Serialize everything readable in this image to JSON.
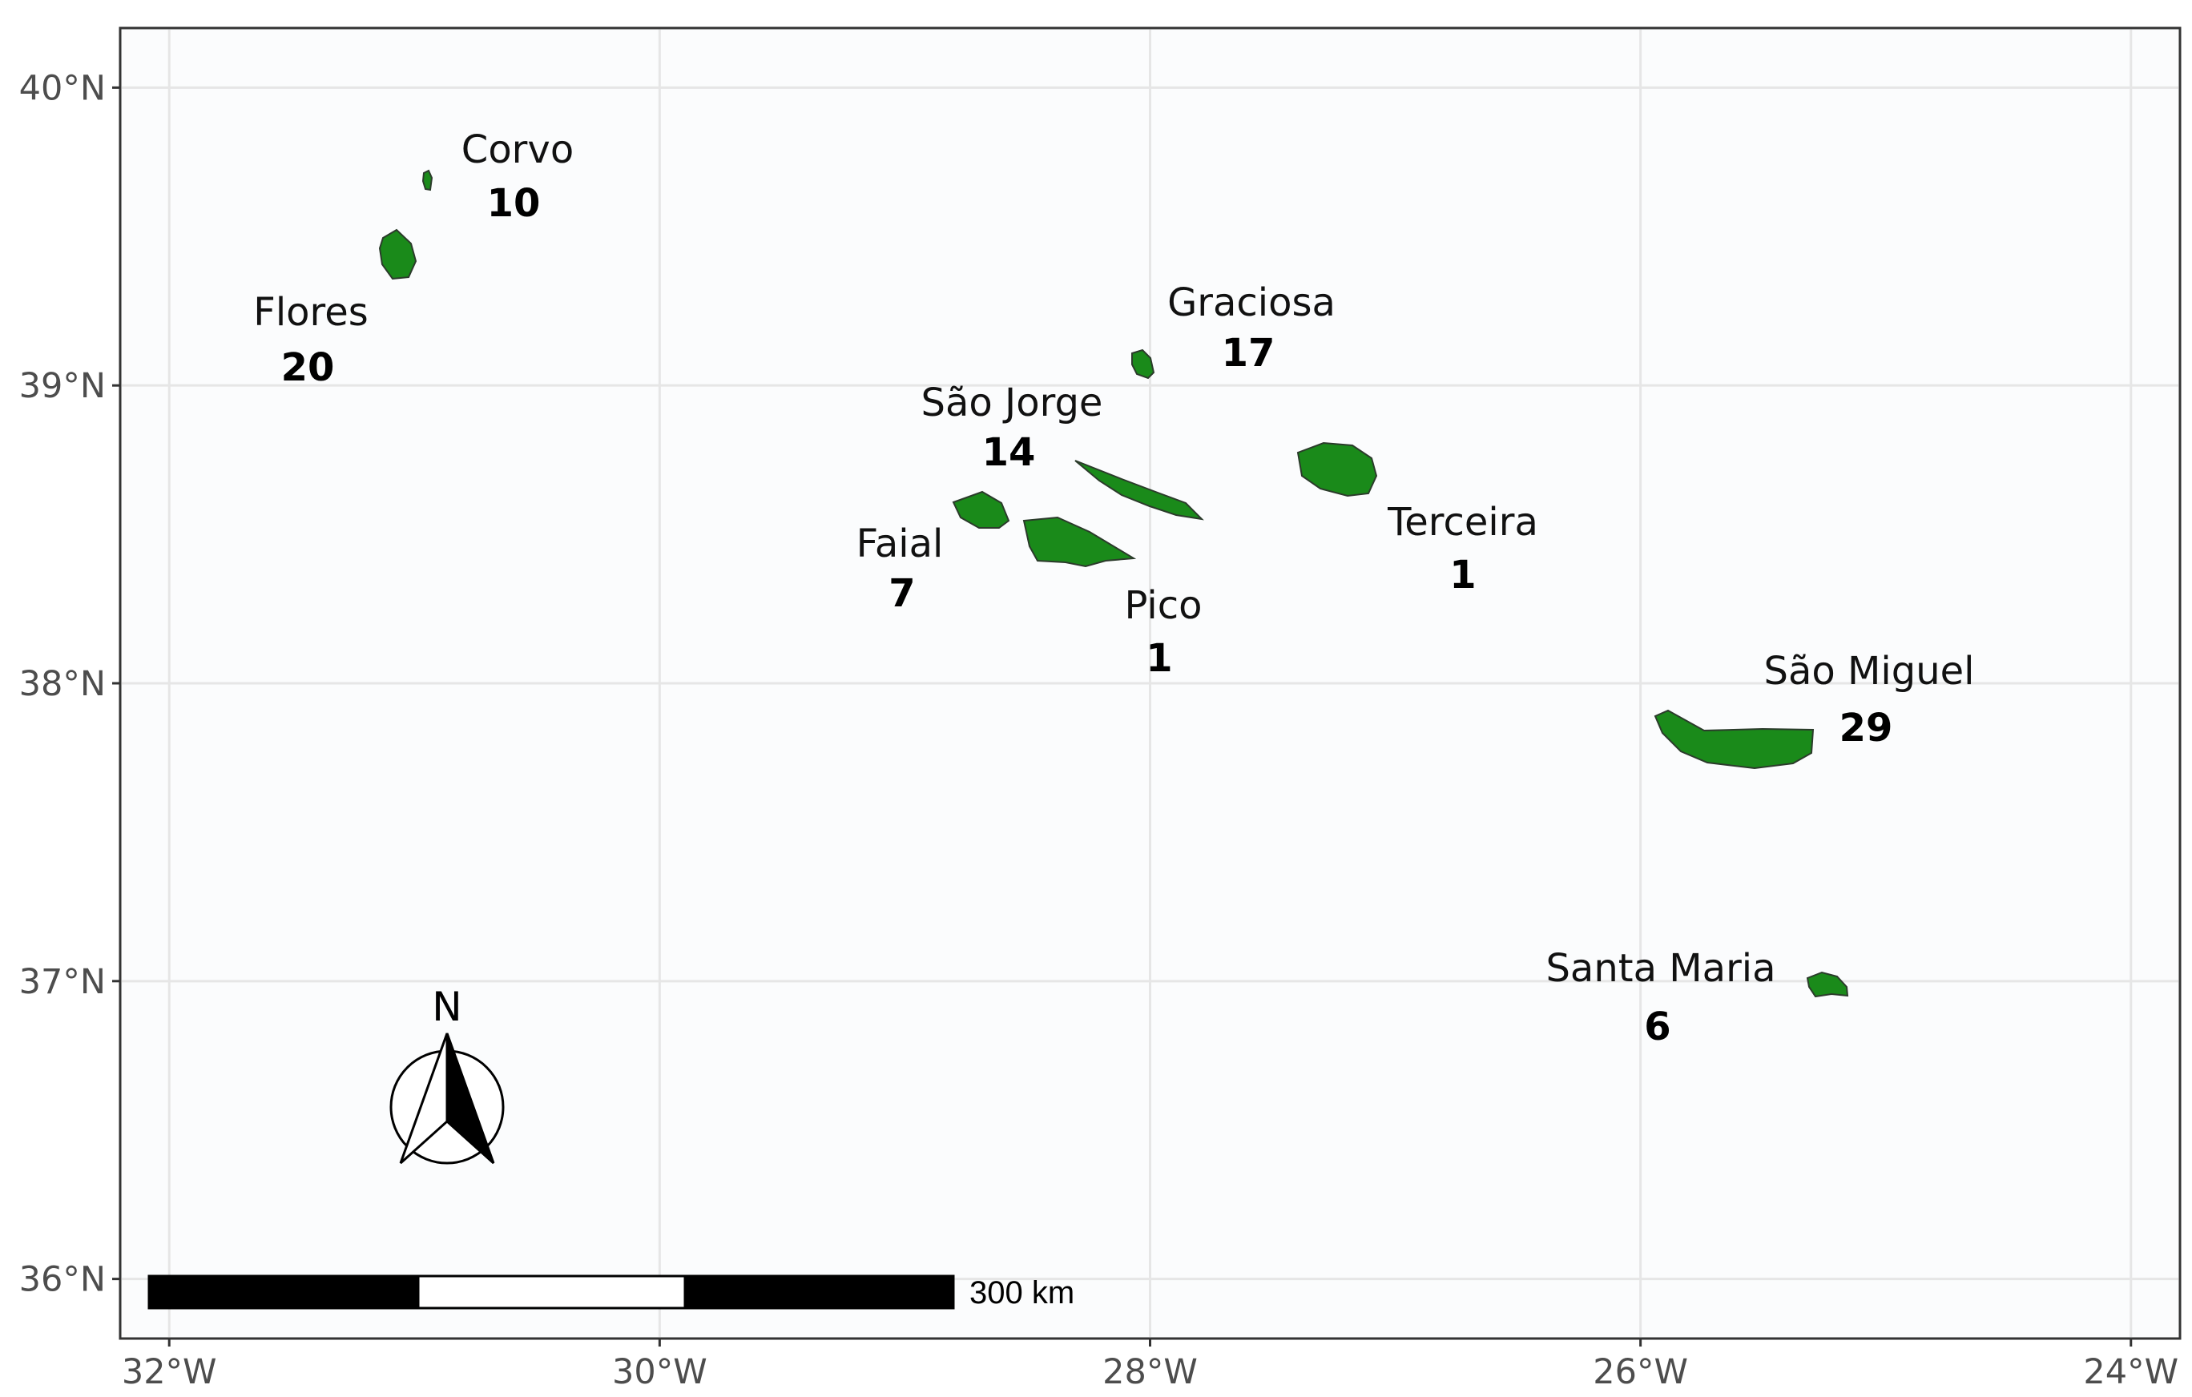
{
  "map": {
    "panel_background": "#fbfcfd",
    "grid_color": "#e6e6e6",
    "island_fill": "#1a8a1a",
    "island_stroke": "#2b3b2b",
    "axes": {
      "x": {
        "range": [
          -32.2,
          -23.8
        ],
        "ticks": [
          {
            "value": -32,
            "label": "32°W"
          },
          {
            "value": -30,
            "label": "30°W"
          },
          {
            "value": -28,
            "label": "28°W"
          },
          {
            "value": -26,
            "label": "26°W"
          },
          {
            "value": -24,
            "label": "24°W"
          }
        ]
      },
      "y": {
        "range": [
          35.8,
          40.2
        ],
        "ticks": [
          {
            "value": 40,
            "label": "40°N"
          },
          {
            "value": 39,
            "label": "39°N"
          },
          {
            "value": 38,
            "label": "38°N"
          },
          {
            "value": 37,
            "label": "37°N"
          },
          {
            "value": 36,
            "label": "36°N"
          }
        ]
      }
    },
    "islands": [
      {
        "key": "corvo",
        "name": "Corvo",
        "count": "10"
      },
      {
        "key": "flores",
        "name": "Flores",
        "count": "20"
      },
      {
        "key": "graciosa",
        "name": "Graciosa",
        "count": "17"
      },
      {
        "key": "sao-jorge",
        "name": "São Jorge",
        "count": "14"
      },
      {
        "key": "faial",
        "name": "Faial",
        "count": "7"
      },
      {
        "key": "pico",
        "name": "Pico",
        "count": "1"
      },
      {
        "key": "terceira",
        "name": "Terceira",
        "count": "1"
      },
      {
        "key": "sao-miguel",
        "name": "São Miguel",
        "count": "29"
      },
      {
        "key": "santa-maria",
        "name": "Santa Maria",
        "count": "6"
      }
    ],
    "north_arrow": {
      "label": "N"
    },
    "scale_bar": {
      "label": "300 km"
    }
  }
}
